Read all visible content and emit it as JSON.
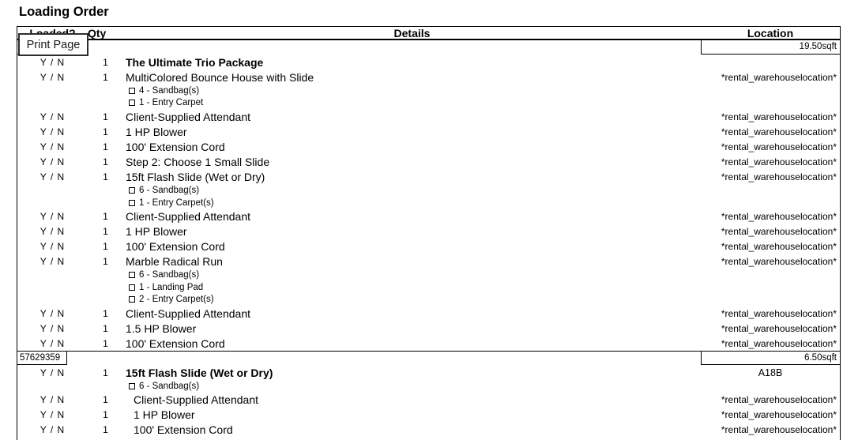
{
  "title": "Loading Order",
  "print_button": {
    "label": "Print Page"
  },
  "colors": {
    "text": "#000000",
    "border": "#000000",
    "background": "#ffffff",
    "button_border": "#2d2d2d"
  },
  "table": {
    "headers": {
      "loaded": "Loaded?",
      "qty": "Qty",
      "details": "Details",
      "location": "Location"
    },
    "rows": [
      {
        "type": "section",
        "order": "",
        "sqft": "19.50sqft",
        "divider": false
      },
      {
        "type": "item",
        "loaded": "Y / N",
        "qty": "1",
        "details": "The Ultimate Trio Package",
        "bold": true,
        "location": ""
      },
      {
        "type": "item",
        "loaded": "Y / N",
        "qty": "1",
        "details": "MultiColored Bounce House with Slide",
        "location": "*rental_warehouselocation*"
      },
      {
        "type": "accessory",
        "label": "4 - Sandbag(s)"
      },
      {
        "type": "accessory",
        "label": "1 - Entry Carpet"
      },
      {
        "type": "item",
        "loaded": "Y / N",
        "qty": "1",
        "details": "Client-Supplied Attendant",
        "location": "*rental_warehouselocation*"
      },
      {
        "type": "item",
        "loaded": "Y / N",
        "qty": "1",
        "details": "1 HP Blower",
        "location": "*rental_warehouselocation*"
      },
      {
        "type": "item",
        "loaded": "Y / N",
        "qty": "1",
        "details": "100' Extension Cord",
        "location": "*rental_warehouselocation*"
      },
      {
        "type": "item",
        "loaded": "Y / N",
        "qty": "1",
        "details": "Step 2: Choose 1 Small Slide",
        "location": "*rental_warehouselocation*"
      },
      {
        "type": "item",
        "loaded": "Y / N",
        "qty": "1",
        "details": "15ft Flash Slide (Wet or Dry)",
        "location": "*rental_warehouselocation*"
      },
      {
        "type": "accessory",
        "label": "6 - Sandbag(s)"
      },
      {
        "type": "accessory",
        "label": "1 - Entry Carpet(s)"
      },
      {
        "type": "item",
        "loaded": "Y / N",
        "qty": "1",
        "details": "Client-Supplied Attendant",
        "location": "*rental_warehouselocation*"
      },
      {
        "type": "item",
        "loaded": "Y / N",
        "qty": "1",
        "details": "1 HP Blower",
        "location": "*rental_warehouselocation*"
      },
      {
        "type": "item",
        "loaded": "Y / N",
        "qty": "1",
        "details": "100' Extension Cord",
        "location": "*rental_warehouselocation*"
      },
      {
        "type": "item",
        "loaded": "Y / N",
        "qty": "1",
        "details": "Marble Radical Run",
        "location": "*rental_warehouselocation*"
      },
      {
        "type": "accessory",
        "label": "6 - Sandbag(s)"
      },
      {
        "type": "accessory",
        "label": "1 - Landing Pad"
      },
      {
        "type": "accessory",
        "label": "2 - Entry Carpet(s)"
      },
      {
        "type": "item",
        "loaded": "Y / N",
        "qty": "1",
        "details": "Client-Supplied Attendant",
        "location": "*rental_warehouselocation*"
      },
      {
        "type": "item",
        "loaded": "Y / N",
        "qty": "1",
        "details": "1.5 HP Blower",
        "location": "*rental_warehouselocation*"
      },
      {
        "type": "item",
        "loaded": "Y / N",
        "qty": "1",
        "details": "100' Extension Cord",
        "location": "*rental_warehouselocation*"
      },
      {
        "type": "section",
        "order": "57629359",
        "sqft": "6.50sqft",
        "divider": true
      },
      {
        "type": "item",
        "loaded": "Y / N",
        "qty": "1",
        "details": "15ft Flash Slide (Wet or Dry)",
        "bold": true,
        "location": "A18B",
        "loc_center": true
      },
      {
        "type": "accessory",
        "label": "6 - Sandbag(s)"
      },
      {
        "type": "item",
        "loaded": "Y / N",
        "qty": "1",
        "details": "Client-Supplied Attendant",
        "indent": true,
        "location": "*rental_warehouselocation*"
      },
      {
        "type": "item",
        "loaded": "Y / N",
        "qty": "1",
        "details": "1 HP Blower",
        "indent": true,
        "location": "*rental_warehouselocation*"
      },
      {
        "type": "item",
        "loaded": "Y / N",
        "qty": "1",
        "details": "100' Extension Cord",
        "indent": true,
        "location": "*rental_warehouselocation*"
      }
    ]
  }
}
